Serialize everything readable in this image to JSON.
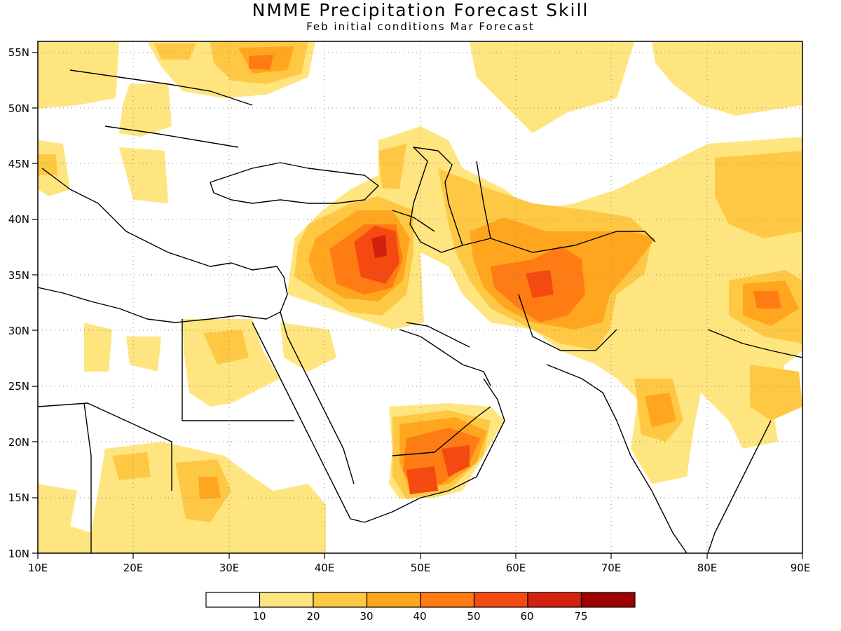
{
  "title": "NMME Precipitation Forecast Skill",
  "subtitle": "Feb initial conditions  Mar Forecast",
  "map": {
    "lon_range": [
      10,
      90
    ],
    "lat_range": [
      10,
      56
    ],
    "lon_ticks": [
      "10E",
      "20E",
      "30E",
      "40E",
      "50E",
      "60E",
      "70E",
      "80E",
      "90E"
    ],
    "lat_ticks": [
      "10N",
      "15N",
      "20N",
      "25N",
      "30N",
      "35N",
      "40N",
      "45N",
      "50N",
      "55N"
    ],
    "grid": "dotted"
  },
  "colorbar": {
    "levels": [
      "10",
      "20",
      "30",
      "40",
      "50",
      "60",
      "75"
    ],
    "colors": [
      "#ffffff",
      "#ffe580",
      "#ffc844",
      "#ffa61e",
      "#ff7c14",
      "#f44a12",
      "#d4200e",
      "#9c0000"
    ]
  }
}
